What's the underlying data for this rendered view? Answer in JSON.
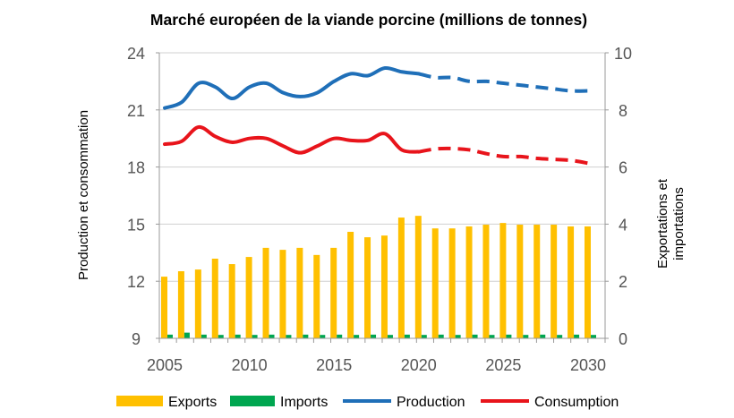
{
  "chart_data": {
    "type": "bar+line",
    "title": "Marché européen de la viande porcine (millions de tonnes)",
    "ylabel_left": "Production et consommation",
    "ylabel_right": [
      "Exportations et",
      "importations"
    ],
    "ylim_left": [
      9,
      24
    ],
    "yticks_left": [
      9,
      12,
      15,
      18,
      21,
      24
    ],
    "ylim_right": [
      0,
      10
    ],
    "yticks_right": [
      0,
      2,
      4,
      6,
      8,
      10
    ],
    "xticks": [
      2005,
      2010,
      2015,
      2020,
      2025,
      2030
    ],
    "grid": "horizontal",
    "legend": "bottom",
    "projection_from": 2020,
    "years": [
      2005,
      2006,
      2007,
      2008,
      2009,
      2010,
      2011,
      2012,
      2013,
      2014,
      2015,
      2016,
      2017,
      2018,
      2019,
      2020,
      2021,
      2022,
      2023,
      2024,
      2025,
      2026,
      2027,
      2028,
      2029,
      2030
    ],
    "series": [
      {
        "name": "Exports",
        "type": "bar",
        "axis": "right",
        "color": "#FFC000",
        "values": [
          2.16,
          2.35,
          2.41,
          2.79,
          2.6,
          2.85,
          3.17,
          3.1,
          3.17,
          2.92,
          3.17,
          3.73,
          3.54,
          3.6,
          4.23,
          4.29,
          3.85,
          3.85,
          3.92,
          3.98,
          4.04,
          3.98,
          3.98,
          3.98,
          3.92,
          3.92
        ]
      },
      {
        "name": "Imports",
        "type": "bar",
        "axis": "right",
        "color": "#00A650",
        "values": [
          0.13,
          0.2,
          0.13,
          0.12,
          0.13,
          0.12,
          0.13,
          0.12,
          0.13,
          0.12,
          0.13,
          0.12,
          0.13,
          0.12,
          0.13,
          0.12,
          0.13,
          0.12,
          0.13,
          0.12,
          0.13,
          0.12,
          0.13,
          0.12,
          0.13,
          0.12
        ]
      },
      {
        "name": "Production",
        "type": "line",
        "axis": "left",
        "color": "#1F6FB8",
        "values": [
          21.1,
          21.4,
          22.4,
          22.2,
          21.6,
          22.2,
          22.4,
          21.9,
          21.7,
          21.9,
          22.5,
          22.9,
          22.8,
          23.2,
          23.0,
          22.9,
          22.7,
          22.7,
          22.5,
          22.5,
          22.4,
          22.3,
          22.2,
          22.1,
          22.0,
          22.0
        ]
      },
      {
        "name": "Consumption",
        "type": "line",
        "axis": "left",
        "color": "#E8141B",
        "values": [
          19.2,
          19.35,
          20.1,
          19.6,
          19.3,
          19.5,
          19.5,
          19.1,
          18.75,
          19.1,
          19.5,
          19.4,
          19.4,
          19.75,
          18.9,
          18.8,
          18.95,
          18.97,
          18.9,
          18.7,
          18.55,
          18.55,
          18.45,
          18.4,
          18.35,
          18.2
        ]
      }
    ]
  }
}
